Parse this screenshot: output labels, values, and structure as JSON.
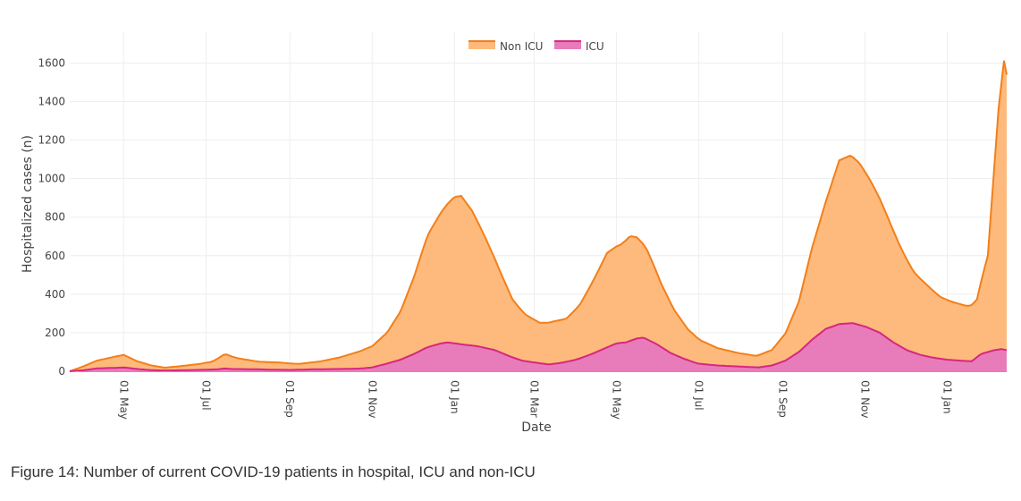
{
  "caption": "Figure 14: Number of current COVID-19 patients in hospital, ICU and non-ICU",
  "chart_data": {
    "type": "area",
    "stacked": true,
    "xlabel": "Date",
    "ylabel": "Hospitalized cases (n)",
    "ylim": [
      0,
      1760
    ],
    "yticks": [
      0,
      200,
      400,
      600,
      800,
      1000,
      1200,
      1400,
      1600
    ],
    "x_day_range": [
      -40,
      654
    ],
    "xticks": [
      {
        "label": "01 May",
        "day": 0
      },
      {
        "label": "01 Jul",
        "day": 61
      },
      {
        "label": "01 Sep",
        "day": 123
      },
      {
        "label": "01 Nov",
        "day": 184
      },
      {
        "label": "01 Jan",
        "day": 245
      },
      {
        "label": "01 Mar",
        "day": 304
      },
      {
        "label": "01 May",
        "day": 365
      },
      {
        "label": "01 Jul",
        "day": 426
      },
      {
        "label": "01 Sep",
        "day": 488
      },
      {
        "label": "01 Nov",
        "day": 549
      },
      {
        "label": "01 Jan",
        "day": 610
      }
    ],
    "legend_position": "top-center",
    "grid": true,
    "series": [
      {
        "name": "ICU",
        "color": "#d6287f",
        "fill": "#e87cba",
        "points": [
          [
            -40,
            0
          ],
          [
            -30,
            5
          ],
          [
            -20,
            15
          ],
          [
            -5,
            18
          ],
          [
            0,
            20
          ],
          [
            10,
            12
          ],
          [
            20,
            6
          ],
          [
            30,
            4
          ],
          [
            40,
            5
          ],
          [
            55,
            7
          ],
          [
            70,
            10
          ],
          [
            75,
            15
          ],
          [
            80,
            12
          ],
          [
            100,
            10
          ],
          [
            110,
            8
          ],
          [
            123,
            7
          ],
          [
            140,
            10
          ],
          [
            160,
            12
          ],
          [
            175,
            14
          ],
          [
            184,
            20
          ],
          [
            195,
            40
          ],
          [
            205,
            60
          ],
          [
            215,
            90
          ],
          [
            225,
            125
          ],
          [
            235,
            145
          ],
          [
            240,
            150
          ],
          [
            250,
            140
          ],
          [
            262,
            130
          ],
          [
            275,
            110
          ],
          [
            285,
            80
          ],
          [
            295,
            55
          ],
          [
            305,
            45
          ],
          [
            315,
            35
          ],
          [
            325,
            45
          ],
          [
            335,
            60
          ],
          [
            345,
            85
          ],
          [
            355,
            115
          ],
          [
            365,
            145
          ],
          [
            372,
            150
          ],
          [
            380,
            170
          ],
          [
            385,
            175
          ],
          [
            395,
            140
          ],
          [
            405,
            95
          ],
          [
            415,
            65
          ],
          [
            425,
            40
          ],
          [
            440,
            30
          ],
          [
            455,
            25
          ],
          [
            470,
            20
          ],
          [
            480,
            30
          ],
          [
            490,
            55
          ],
          [
            500,
            100
          ],
          [
            510,
            165
          ],
          [
            520,
            220
          ],
          [
            530,
            245
          ],
          [
            540,
            250
          ],
          [
            550,
            230
          ],
          [
            560,
            200
          ],
          [
            570,
            150
          ],
          [
            580,
            110
          ],
          [
            590,
            85
          ],
          [
            600,
            70
          ],
          [
            610,
            60
          ],
          [
            620,
            55
          ],
          [
            628,
            52
          ],
          [
            635,
            90
          ],
          [
            645,
            110
          ],
          [
            650,
            115
          ],
          [
            654,
            110
          ]
        ]
      },
      {
        "name": "Non ICU",
        "color": "#f37f1a",
        "fill": "#fdba7c",
        "points": [
          [
            -40,
            0
          ],
          [
            -30,
            20
          ],
          [
            -20,
            40
          ],
          [
            -5,
            60
          ],
          [
            0,
            65
          ],
          [
            10,
            40
          ],
          [
            20,
            25
          ],
          [
            30,
            15
          ],
          [
            40,
            20
          ],
          [
            55,
            30
          ],
          [
            65,
            40
          ],
          [
            75,
            75
          ],
          [
            85,
            55
          ],
          [
            100,
            40
          ],
          [
            115,
            38
          ],
          [
            130,
            30
          ],
          [
            145,
            40
          ],
          [
            160,
            60
          ],
          [
            175,
            90
          ],
          [
            184,
            110
          ],
          [
            195,
            160
          ],
          [
            205,
            250
          ],
          [
            215,
            400
          ],
          [
            225,
            580
          ],
          [
            235,
            680
          ],
          [
            245,
            760
          ],
          [
            250,
            770
          ],
          [
            258,
            700
          ],
          [
            268,
            570
          ],
          [
            278,
            430
          ],
          [
            288,
            300
          ],
          [
            298,
            240
          ],
          [
            308,
            210
          ],
          [
            318,
            220
          ],
          [
            328,
            225
          ],
          [
            338,
            280
          ],
          [
            348,
            380
          ],
          [
            358,
            490
          ],
          [
            368,
            510
          ],
          [
            375,
            545
          ],
          [
            380,
            525
          ],
          [
            388,
            460
          ],
          [
            398,
            330
          ],
          [
            408,
            230
          ],
          [
            418,
            160
          ],
          [
            428,
            120
          ],
          [
            440,
            90
          ],
          [
            455,
            70
          ],
          [
            468,
            60
          ],
          [
            480,
            80
          ],
          [
            490,
            140
          ],
          [
            500,
            260
          ],
          [
            510,
            480
          ],
          [
            520,
            660
          ],
          [
            530,
            850
          ],
          [
            538,
            870
          ],
          [
            545,
            840
          ],
          [
            555,
            750
          ],
          [
            565,
            640
          ],
          [
            575,
            520
          ],
          [
            585,
            420
          ],
          [
            595,
            370
          ],
          [
            605,
            320
          ],
          [
            615,
            300
          ],
          [
            625,
            285
          ],
          [
            632,
            300
          ],
          [
            640,
            500
          ],
          [
            648,
            1250
          ],
          [
            652,
            1500
          ],
          [
            654,
            1430
          ]
        ]
      }
    ]
  }
}
